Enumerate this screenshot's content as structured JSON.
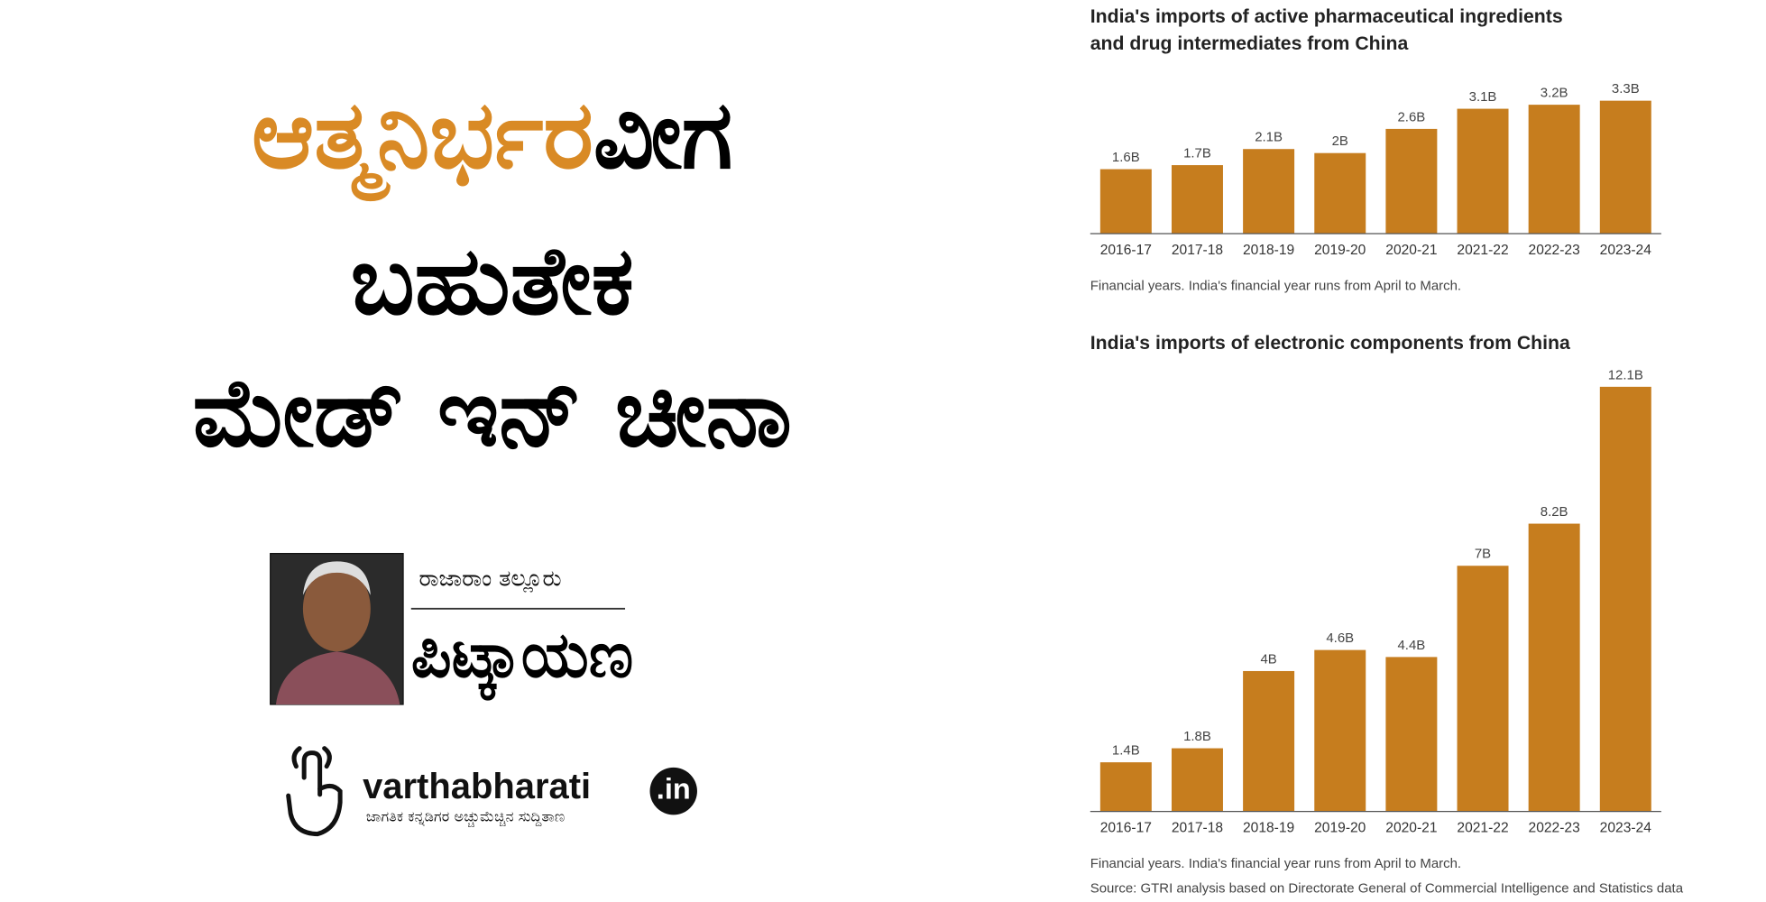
{
  "headline": {
    "line1": [
      "ಆತ್ಮನಿರ್ಭರ",
      "ವೀಗ"
    ],
    "line2": "ಬಹುತೇಕ",
    "line3": "ಮೇಡ್ ಇನ್ ಚೀನಾ"
  },
  "author": "ರಾಜಾರಾಂ ತಲ್ಲೂರು",
  "column": "ಪಿಟ್ಕಾಯಣ",
  "logo": {
    "name": "varthabharati",
    "suffix": ".in",
    "tagline": "ಜಾಗತಿಕ ಕನ್ನಡಿಗರ ಅಚ್ಚುಮೆಚ್ಚಿನ ಸುದ್ದಿತಾಣ"
  },
  "chart_data": [
    {
      "type": "bar",
      "title": [
        "India's imports of active pharmaceutical ingredients",
        "and drug intermediates from China"
      ],
      "categories": [
        "2016-17",
        "2017-18",
        "2018-19",
        "2019-20",
        "2020-21",
        "2021-22",
        "2022-23",
        "2023-24"
      ],
      "values": [
        1.6,
        1.7,
        2.1,
        2,
        2.6,
        3.1,
        3.2,
        3.3
      ],
      "value_labels": [
        "1.6B",
        "1.7B",
        "2.1B",
        "2B",
        "2.6B",
        "3.1B",
        "3.2B",
        "3.3B"
      ],
      "color": "#c67d1e",
      "note": "Financial years. India's financial year runs from April to March."
    },
    {
      "type": "bar",
      "title": [
        "India's imports of electronic components from China"
      ],
      "categories": [
        "2016-17",
        "2017-18",
        "2018-19",
        "2019-20",
        "2020-21",
        "2021-22",
        "2022-23",
        "2023-24"
      ],
      "values": [
        1.4,
        1.8,
        4,
        4.6,
        4.4,
        7,
        8.2,
        12.1
      ],
      "value_labels": [
        "1.4B",
        "1.8B",
        "4B",
        "4.6B",
        "4.4B",
        "7B",
        "8.2B",
        "12.1B"
      ],
      "color": "#c67d1e",
      "note": "Financial years. India's financial year runs from April to March."
    }
  ],
  "source": "Source: GTRI analysis based on Directorate General of Commercial Intelligence and Statistics data"
}
